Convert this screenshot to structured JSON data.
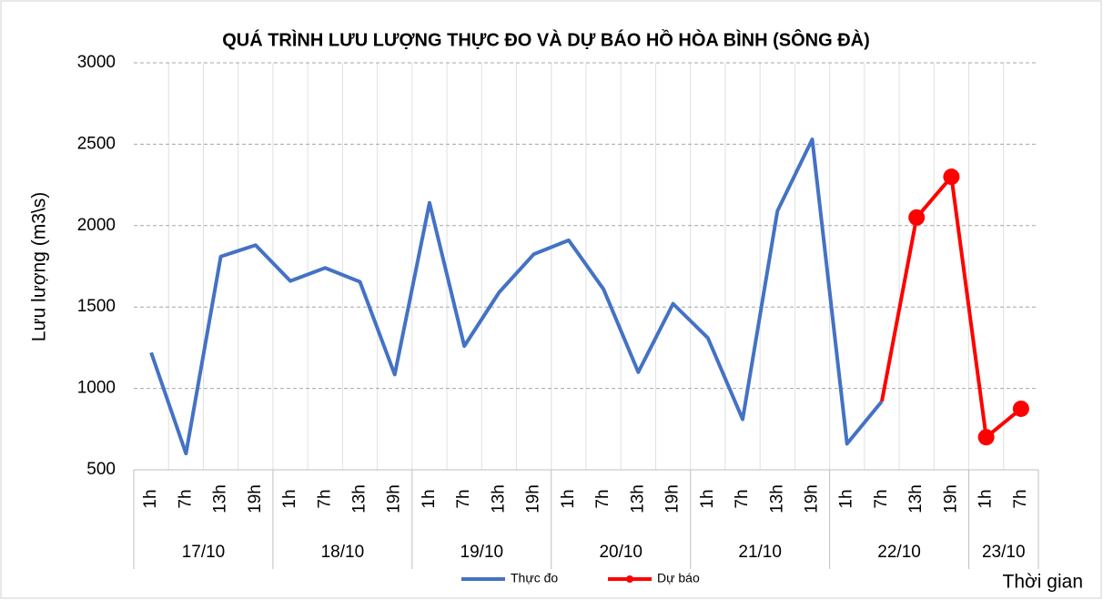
{
  "chart_data": {
    "type": "line",
    "title": "QUÁ TRÌNH LƯU LƯỢNG THỰC ĐO VÀ DỰ BÁO HỒ HÒA BÌNH (SÔNG ĐÀ)",
    "y_label": "Lưu lượng (m3\\s)",
    "x_label": "Thời gian",
    "groups": [
      {
        "label": "17/10",
        "categories": [
          "1h",
          "7h",
          "13h",
          "19h"
        ]
      },
      {
        "label": "18/10",
        "categories": [
          "1h",
          "7h",
          "13h",
          "19h"
        ]
      },
      {
        "label": "19/10",
        "categories": [
          "1h",
          "7h",
          "13h",
          "19h"
        ]
      },
      {
        "label": "20/10",
        "categories": [
          "1h",
          "7h",
          "13h",
          "19h"
        ]
      },
      {
        "label": "21/10",
        "categories": [
          "1h",
          "7h",
          "13h",
          "19h"
        ]
      },
      {
        "label": "22/10",
        "categories": [
          "1h",
          "7h",
          "13h",
          "19h"
        ]
      },
      {
        "label": "23/10",
        "categories": [
          "1h",
          "7h"
        ]
      }
    ],
    "series": [
      {
        "name": "Thực đo",
        "color": "#4472c4",
        "markers": false,
        "values": [
          1220,
          600,
          1810,
          1880,
          1660,
          1740,
          1655,
          1085,
          2140,
          1260,
          1590,
          1825,
          1910,
          1610,
          1100,
          1520,
          1310,
          810,
          2090,
          2530,
          660,
          920,
          null,
          null,
          null,
          null
        ]
      },
      {
        "name": "Dự báo",
        "color": "#ff0000",
        "markers": true,
        "values": [
          null,
          null,
          null,
          null,
          null,
          null,
          null,
          null,
          null,
          null,
          null,
          null,
          null,
          null,
          null,
          null,
          null,
          null,
          null,
          null,
          null,
          920,
          2050,
          2300,
          700,
          875
        ]
      }
    ],
    "ylim": [
      500,
      3000
    ],
    "yticks": [
      500,
      1000,
      1500,
      2000,
      2500,
      3000
    ],
    "grid": true
  }
}
